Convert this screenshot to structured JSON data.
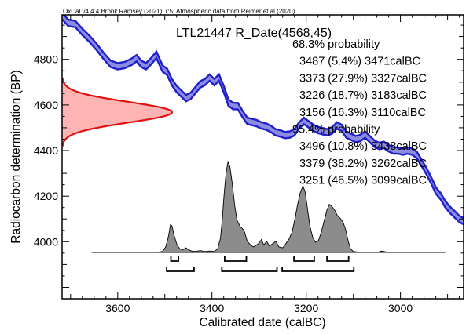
{
  "header_text": "OxCal v4.4.4 Bronk Ramsey (2021); r:5; Atmospheric data from Reimer et al (2020)",
  "colors": {
    "curve_line": "#1f1fcc",
    "curve_band": "#8c8ce0",
    "date_fill": "#ffb4b4",
    "date_line": "#e01010",
    "posterior_fill": "#8c8c8c",
    "axis": "#000000"
  },
  "chart_data": {
    "type": "area",
    "title": "LTL21447 R_Date(4568,45)",
    "xlabel": "Calibrated date (calBC)",
    "ylabel": "Radiocarbon determination (BP)",
    "x_reversed": true,
    "xlim": [
      3718,
      2866
    ],
    "ylim": [
      3750,
      4995
    ],
    "x_ticks": [
      3600,
      3400,
      3200,
      3000
    ],
    "y_ticks": [
      4000,
      4200,
      4400,
      4600,
      4800
    ],
    "probability_ranges": [
      {
        "heading": "68.3% probability",
        "ranges": [
          {
            "from": 3487,
            "percent": "5.4%",
            "to": 3471,
            "text": "3487 (5.4%) 3471calBC"
          },
          {
            "from": 3373,
            "percent": "27.9%",
            "to": 3327,
            "text": "3373 (27.9%) 3327calBC"
          },
          {
            "from": 3226,
            "percent": "18.7%",
            "to": 3183,
            "text": "3226 (18.7%) 3183calBC"
          },
          {
            "from": 3156,
            "percent": "16.3%",
            "to": 3110,
            "text": "3156 (16.3%) 3110calBC"
          }
        ]
      },
      {
        "heading": "95.4% probability",
        "ranges": [
          {
            "from": 3496,
            "percent": "10.8%",
            "to": 3438,
            "text": "3496 (10.8%) 3438calBC"
          },
          {
            "from": 3379,
            "percent": "38.2%",
            "to": 3262,
            "text": "3379 (38.2%) 3262calBC"
          },
          {
            "from": 3251,
            "percent": "46.5%",
            "to": 3099,
            "text": "3251 (46.5%) 3099calBC"
          }
        ]
      }
    ],
    "radiocarbon_date": {
      "mean": 4568,
      "sd": 45
    },
    "calibration_curve": [
      {
        "x": 3718,
        "y": 4990
      },
      {
        "x": 3705,
        "y": 4960
      },
      {
        "x": 3690,
        "y": 4955
      },
      {
        "x": 3675,
        "y": 4920
      },
      {
        "x": 3660,
        "y": 4890
      },
      {
        "x": 3645,
        "y": 4855
      },
      {
        "x": 3630,
        "y": 4815
      },
      {
        "x": 3615,
        "y": 4780
      },
      {
        "x": 3600,
        "y": 4770
      },
      {
        "x": 3585,
        "y": 4775
      },
      {
        "x": 3570,
        "y": 4790
      },
      {
        "x": 3560,
        "y": 4805
      },
      {
        "x": 3550,
        "y": 4780
      },
      {
        "x": 3540,
        "y": 4770
      },
      {
        "x": 3530,
        "y": 4790
      },
      {
        "x": 3518,
        "y": 4820
      },
      {
        "x": 3505,
        "y": 4760
      },
      {
        "x": 3495,
        "y": 4745
      },
      {
        "x": 3485,
        "y": 4700
      },
      {
        "x": 3475,
        "y": 4670
      },
      {
        "x": 3465,
        "y": 4650
      },
      {
        "x": 3455,
        "y": 4630
      },
      {
        "x": 3445,
        "y": 4640
      },
      {
        "x": 3435,
        "y": 4665
      },
      {
        "x": 3425,
        "y": 4690
      },
      {
        "x": 3415,
        "y": 4700
      },
      {
        "x": 3405,
        "y": 4720
      },
      {
        "x": 3395,
        "y": 4700
      },
      {
        "x": 3385,
        "y": 4720
      },
      {
        "x": 3375,
        "y": 4670
      },
      {
        "x": 3365,
        "y": 4610
      },
      {
        "x": 3355,
        "y": 4595
      },
      {
        "x": 3345,
        "y": 4595
      },
      {
        "x": 3335,
        "y": 4560
      },
      {
        "x": 3325,
        "y": 4530
      },
      {
        "x": 3315,
        "y": 4525
      },
      {
        "x": 3305,
        "y": 4520
      },
      {
        "x": 3295,
        "y": 4510
      },
      {
        "x": 3285,
        "y": 4505
      },
      {
        "x": 3275,
        "y": 4495
      },
      {
        "x": 3265,
        "y": 4480
      },
      {
        "x": 3255,
        "y": 4475
      },
      {
        "x": 3245,
        "y": 4468
      },
      {
        "x": 3235,
        "y": 4470
      },
      {
        "x": 3225,
        "y": 4480
      },
      {
        "x": 3215,
        "y": 4510
      },
      {
        "x": 3205,
        "y": 4530
      },
      {
        "x": 3195,
        "y": 4515
      },
      {
        "x": 3185,
        "y": 4500
      },
      {
        "x": 3175,
        "y": 4490
      },
      {
        "x": 3165,
        "y": 4485
      },
      {
        "x": 3155,
        "y": 4480
      },
      {
        "x": 3145,
        "y": 4488
      },
      {
        "x": 3135,
        "y": 4510
      },
      {
        "x": 3125,
        "y": 4500
      },
      {
        "x": 3115,
        "y": 4470
      },
      {
        "x": 3105,
        "y": 4460
      },
      {
        "x": 3095,
        "y": 4450
      },
      {
        "x": 3085,
        "y": 4455
      },
      {
        "x": 3075,
        "y": 4470
      },
      {
        "x": 3065,
        "y": 4450
      },
      {
        "x": 3055,
        "y": 4430
      },
      {
        "x": 3045,
        "y": 4420
      },
      {
        "x": 3035,
        "y": 4425
      },
      {
        "x": 3025,
        "y": 4410
      },
      {
        "x": 3015,
        "y": 4400
      },
      {
        "x": 3005,
        "y": 4400
      },
      {
        "x": 2995,
        "y": 4395
      },
      {
        "x": 2985,
        "y": 4400
      },
      {
        "x": 2975,
        "y": 4395
      },
      {
        "x": 2965,
        "y": 4380
      },
      {
        "x": 2955,
        "y": 4345
      },
      {
        "x": 2945,
        "y": 4310
      },
      {
        "x": 2935,
        "y": 4270
      },
      {
        "x": 2925,
        "y": 4225
      },
      {
        "x": 2915,
        "y": 4200
      },
      {
        "x": 2905,
        "y": 4165
      },
      {
        "x": 2895,
        "y": 4140
      },
      {
        "x": 2885,
        "y": 4120
      },
      {
        "x": 2875,
        "y": 4100
      },
      {
        "x": 2866,
        "y": 4090
      }
    ],
    "curve_band_halfwidth_bp": 14,
    "posterior_baseline_x": [
      3655,
      2905
    ],
    "posterior_distribution": [
      {
        "x": 3655,
        "p": 0.0
      },
      {
        "x": 3520,
        "p": 0.0
      },
      {
        "x": 3505,
        "p": 0.01
      },
      {
        "x": 3498,
        "p": 0.06
      },
      {
        "x": 3492,
        "p": 0.18
      },
      {
        "x": 3488,
        "p": 0.3
      },
      {
        "x": 3485,
        "p": 0.29
      },
      {
        "x": 3480,
        "p": 0.18
      },
      {
        "x": 3474,
        "p": 0.08
      },
      {
        "x": 3468,
        "p": 0.04
      },
      {
        "x": 3462,
        "p": 0.03
      },
      {
        "x": 3455,
        "p": 0.05
      },
      {
        "x": 3450,
        "p": 0.03
      },
      {
        "x": 3443,
        "p": 0.015
      },
      {
        "x": 3435,
        "p": 0.01
      },
      {
        "x": 3425,
        "p": 0.02
      },
      {
        "x": 3415,
        "p": 0.01
      },
      {
        "x": 3405,
        "p": 0.015
      },
      {
        "x": 3395,
        "p": 0.01
      },
      {
        "x": 3388,
        "p": 0.04
      },
      {
        "x": 3382,
        "p": 0.15
      },
      {
        "x": 3378,
        "p": 0.36
      },
      {
        "x": 3374,
        "p": 0.64
      },
      {
        "x": 3370,
        "p": 0.86
      },
      {
        "x": 3366,
        "p": 0.98
      },
      {
        "x": 3362,
        "p": 0.93
      },
      {
        "x": 3357,
        "p": 0.75
      },
      {
        "x": 3352,
        "p": 0.52
      },
      {
        "x": 3347,
        "p": 0.35
      },
      {
        "x": 3340,
        "p": 0.28
      },
      {
        "x": 3332,
        "p": 0.24
      },
      {
        "x": 3325,
        "p": 0.12
      },
      {
        "x": 3318,
        "p": 0.08
      },
      {
        "x": 3312,
        "p": 0.06
      },
      {
        "x": 3306,
        "p": 0.08
      },
      {
        "x": 3300,
        "p": 0.1
      },
      {
        "x": 3295,
        "p": 0.14
      },
      {
        "x": 3290,
        "p": 0.08
      },
      {
        "x": 3284,
        "p": 0.12
      },
      {
        "x": 3278,
        "p": 0.07
      },
      {
        "x": 3270,
        "p": 0.1
      },
      {
        "x": 3264,
        "p": 0.12
      },
      {
        "x": 3258,
        "p": 0.06
      },
      {
        "x": 3250,
        "p": 0.05
      },
      {
        "x": 3244,
        "p": 0.09
      },
      {
        "x": 3237,
        "p": 0.14
      },
      {
        "x": 3230,
        "p": 0.22
      },
      {
        "x": 3224,
        "p": 0.36
      },
      {
        "x": 3219,
        "p": 0.5
      },
      {
        "x": 3213,
        "p": 0.64
      },
      {
        "x": 3207,
        "p": 0.72
      },
      {
        "x": 3202,
        "p": 0.65
      },
      {
        "x": 3197,
        "p": 0.46
      },
      {
        "x": 3192,
        "p": 0.28
      },
      {
        "x": 3186,
        "p": 0.16
      },
      {
        "x": 3180,
        "p": 0.11
      },
      {
        "x": 3174,
        "p": 0.13
      },
      {
        "x": 3168,
        "p": 0.22
      },
      {
        "x": 3162,
        "p": 0.34
      },
      {
        "x": 3156,
        "p": 0.46
      },
      {
        "x": 3151,
        "p": 0.52
      },
      {
        "x": 3146,
        "p": 0.5
      },
      {
        "x": 3140,
        "p": 0.46
      },
      {
        "x": 3134,
        "p": 0.4
      },
      {
        "x": 3128,
        "p": 0.37
      },
      {
        "x": 3122,
        "p": 0.33
      },
      {
        "x": 3116,
        "p": 0.24
      },
      {
        "x": 3111,
        "p": 0.12
      },
      {
        "x": 3106,
        "p": 0.04
      },
      {
        "x": 3100,
        "p": 0.01
      },
      {
        "x": 3090,
        "p": 0.005
      },
      {
        "x": 3050,
        "p": 0.0
      },
      {
        "x": 3040,
        "p": 0.015
      },
      {
        "x": 3030,
        "p": 0.005
      },
      {
        "x": 3020,
        "p": 0.0
      },
      {
        "x": 2905,
        "p": 0.0
      }
    ]
  }
}
